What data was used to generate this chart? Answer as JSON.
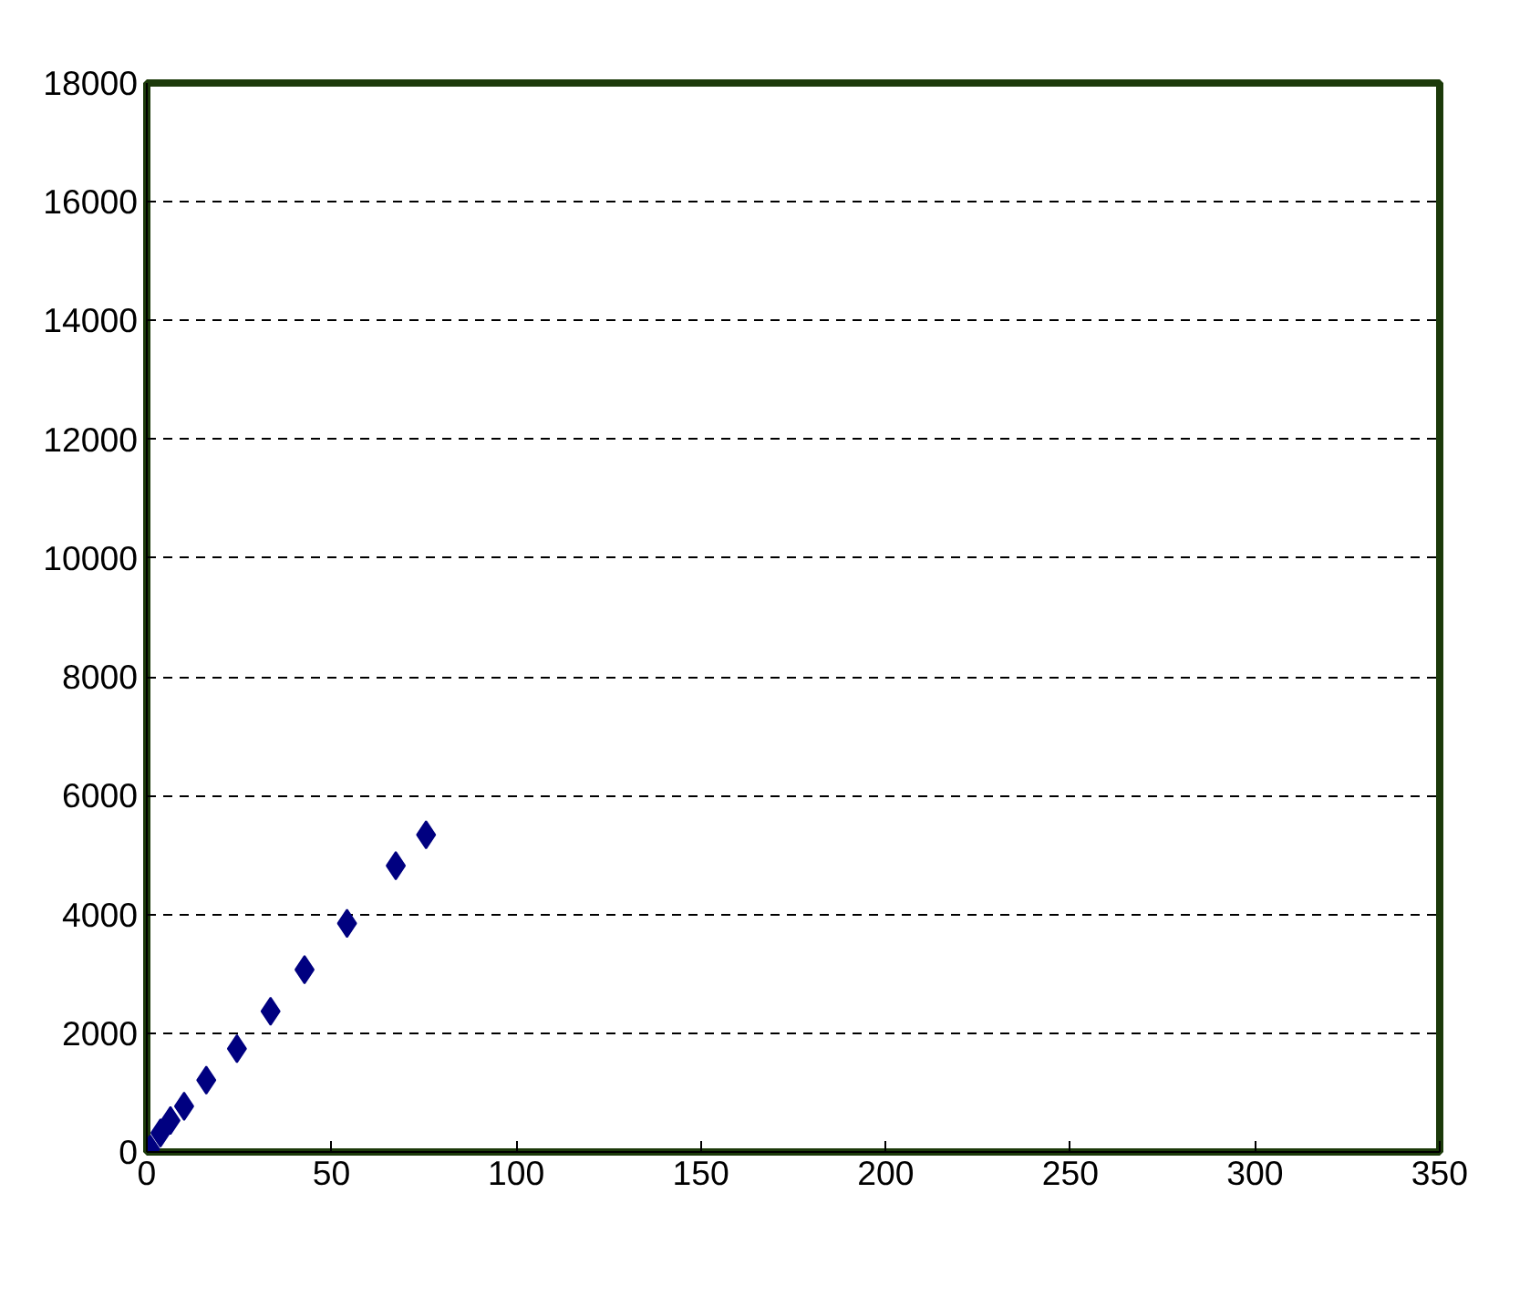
{
  "chart_data": {
    "type": "scatter",
    "marker": "diamond",
    "grid": "y",
    "line_style": "dashed",
    "x": [
      0.9,
      3.7,
      6.4,
      10.1,
      16.1,
      24.4,
      33.5,
      42.7,
      54.2,
      67.4,
      75.6
    ],
    "series": [
      {
        "color": "#000080",
        "values": [
          50,
          320,
          530,
          770,
          1210,
          1740,
          2370,
          3070,
          3850,
          4820,
          5340
        ]
      }
    ],
    "xlim": [
      0,
      350
    ],
    "xticks": [
      0,
      50,
      100,
      150,
      200,
      250,
      300,
      350
    ],
    "ylim": [
      0,
      18000
    ],
    "yticks": [
      0,
      2000,
      4000,
      6000,
      8000,
      10000,
      12000,
      14000,
      16000,
      18000
    ]
  }
}
